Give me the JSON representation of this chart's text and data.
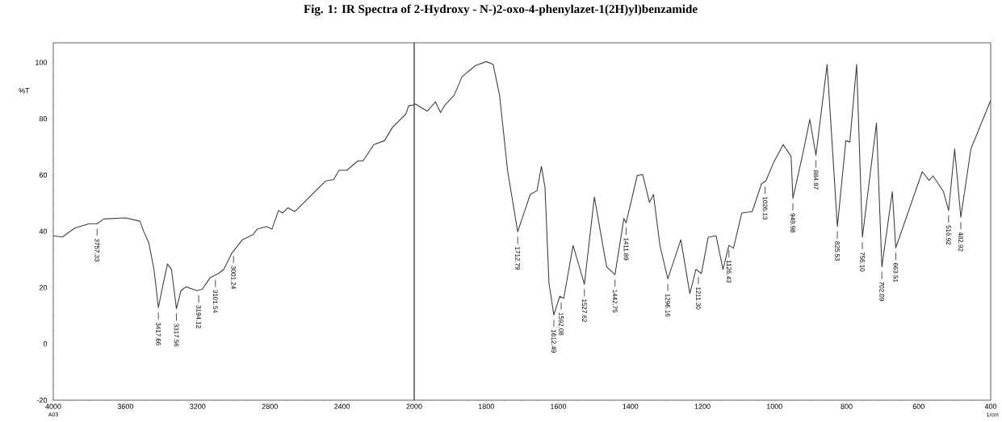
{
  "chart_data": [
    {
      "type": "line",
      "title": "Fig. 1: IR Spectra of 2-Hydroxy - N-)2-oxo-4-phenylazet-1(2H)yl)benzamide",
      "ylabel": "%T",
      "xlim": [
        4000,
        2000
      ],
      "xticks": [
        4000,
        3600,
        3200,
        2800,
        2400
      ],
      "ylim": [
        -20,
        107
      ],
      "yticks": [
        -20,
        0,
        20,
        40,
        60,
        80,
        100
      ],
      "series": [
        {
          "color": "#404040",
          "x": [
            4000,
            3950,
            3880,
            3800,
            3757,
            3720,
            3600,
            3520,
            3500,
            3471,
            3442,
            3417.66,
            3390,
            3367,
            3345,
            3317.56,
            3293,
            3263,
            3204,
            3174,
            3130,
            3085,
            3055,
            3011,
            2952,
            2892,
            2870,
            2818,
            2788,
            2752,
            2729,
            2700,
            2662,
            2610,
            2551,
            2491,
            2446,
            2417,
            2373,
            2313,
            2284,
            2224,
            2165,
            2120,
            2046,
            2031,
            2000
          ],
          "values": [
            38.4,
            38,
            41.2,
            42.7,
            42.7,
            44.4,
            44.8,
            43.6,
            40.1,
            36,
            26.5,
            12.9,
            21.7,
            28.4,
            26.5,
            12.5,
            18.9,
            20.3,
            18.9,
            19.4,
            23.6,
            25,
            26.5,
            32.2,
            37,
            38.9,
            40.8,
            41.7,
            40.8,
            47.4,
            46.5,
            48.4,
            47,
            50.3,
            54.1,
            57.9,
            58.4,
            61.7,
            61.7,
            65,
            65,
            70.8,
            72.2,
            77,
            81.7,
            84.6,
            85
          ]
        }
      ],
      "annotations": [
        {
          "text": "3757.33",
          "x": 3757.33,
          "y": 42.7
        },
        {
          "text": "3417.66",
          "x": 3417.66,
          "y": 12.9
        },
        {
          "text": "3317.56",
          "x": 3317.56,
          "y": 12.5
        },
        {
          "text": "3194.12",
          "x": 3194.12,
          "y": 19
        },
        {
          "text": "3101.54",
          "x": 3101.54,
          "y": 24.5
        },
        {
          "text": "3001.24",
          "x": 3001.24,
          "y": 33
        },
        "A03"
      ]
    },
    {
      "type": "line",
      "xlabel": "1/cm",
      "tick_labels": "x",
      "xlim": [
        2000,
        400
      ],
      "xticks": [
        2000,
        1800,
        1600,
        1400,
        1200,
        1000,
        800,
        600,
        400
      ],
      "ylim": [
        -20,
        107
      ],
      "series": [
        {
          "color": "#404040",
          "x": [
            2000,
            1997,
            1964,
            1941,
            1927,
            1915,
            1889,
            1867,
            1830,
            1800,
            1781,
            1763,
            1741,
            1712.79,
            1693,
            1678,
            1659,
            1647,
            1637,
            1626,
            1612.49,
            1596,
            1585,
            1559,
            1527.62,
            1500,
            1466,
            1442.75,
            1418,
            1411.89,
            1381,
            1366,
            1347,
            1336,
            1318,
            1296.16,
            1260,
            1235,
            1218,
            1203,
            1184,
            1162,
            1143,
            1126.43,
            1114,
            1091,
            1062,
            1036,
            1024,
            1002,
            976,
            954,
            948.98,
            920,
            902,
            884.97,
            854,
            825.53,
            802,
            791,
            772,
            756.1,
            717,
            702.09,
            673,
            663.51,
            590,
            571,
            560,
            531,
            516.92,
            500,
            482.92,
            455,
            400
          ],
          "values": [
            85,
            85.3,
            82.7,
            86,
            82.2,
            84.8,
            88.4,
            95,
            98.9,
            100.3,
            99.3,
            88.4,
            61.7,
            39.8,
            47.4,
            53.1,
            54.5,
            63.1,
            55.7,
            21.7,
            10.3,
            16.9,
            16.2,
            35,
            21.2,
            52.2,
            27.4,
            24.6,
            44.6,
            43,
            59.8,
            60.2,
            50.3,
            53.1,
            35,
            23.1,
            37,
            17.9,
            26.5,
            25,
            37.9,
            38.4,
            26.5,
            35,
            34,
            46.5,
            47,
            56.9,
            57.9,
            64.6,
            70.8,
            66.7,
            51.7,
            68.4,
            79.8,
            67,
            99.3,
            41.7,
            72.2,
            71.7,
            99.3,
            37.9,
            78.5,
            27.4,
            54.1,
            34.1,
            61.2,
            58.1,
            59.7,
            54.1,
            47.4,
            69.3,
            45,
            69.3,
            86.5
          ]
        }
      ],
      "annotations": [
        {
          "text": "1712.79",
          "x": 1712.79,
          "y": 39.8
        },
        {
          "text": "1612.49",
          "x": 1612.49,
          "y": 10.3
        },
        {
          "text": "1592.08",
          "x": 1592.08,
          "y": 16.5
        },
        {
          "text": "1527.62",
          "x": 1527.62,
          "y": 21.2
        },
        {
          "text": "1442.75",
          "x": 1442.75,
          "y": 24.6
        },
        {
          "text": "1411.89",
          "x": 1411.89,
          "y": 43
        },
        {
          "text": "1296.16",
          "x": 1296.16,
          "y": 23.1
        },
        {
          "text": "1211.30",
          "x": 1211.3,
          "y": 25.5
        },
        {
          "text": "1126.43",
          "x": 1126.43,
          "y": 35
        },
        {
          "text": "1026.13",
          "x": 1026.13,
          "y": 57.6
        },
        {
          "text": "948.98",
          "x": 948.98,
          "y": 51.7
        },
        {
          "text": "884.97",
          "x": 884.97,
          "y": 67
        },
        {
          "text": "825.53",
          "x": 825.53,
          "y": 41.7
        },
        {
          "text": "756.10",
          "x": 756.1,
          "y": 37.9
        },
        {
          "text": "702.09",
          "x": 702.09,
          "y": 27.4
        },
        {
          "text": "663.51",
          "x": 663.51,
          "y": 34.1
        },
        {
          "text": "516.92",
          "x": 516.92,
          "y": 47.4
        },
        {
          "text": "482.92",
          "x": 482.92,
          "y": 45
        }
      ]
    }
  ]
}
